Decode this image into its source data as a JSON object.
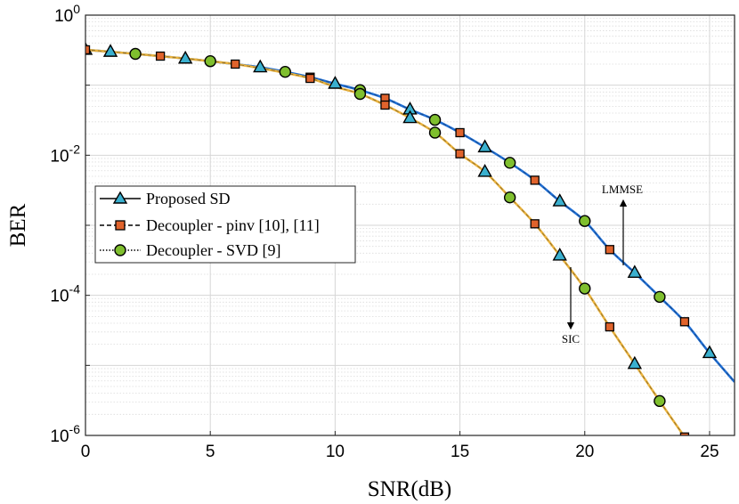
{
  "chart_data": {
    "type": "line",
    "title": "",
    "xlabel": "SNR(dB)",
    "ylabel": "BER",
    "xlim": [
      0,
      26
    ],
    "ylim": [
      1e-06,
      1
    ],
    "yscale": "log",
    "grid": true,
    "x_ticks": [
      0,
      5,
      10,
      15,
      20,
      25
    ],
    "x_tick_labels": [
      "0",
      "5",
      "10",
      "15",
      "20",
      "25"
    ],
    "y_ticks": [
      {
        "value": 1,
        "base": "10",
        "exp": "0"
      },
      {
        "value": 0.01,
        "base": "10",
        "exp": "-2"
      },
      {
        "value": 0.0001,
        "base": "10",
        "exp": "-4"
      },
      {
        "value": 1e-06,
        "base": "10",
        "exp": "-6"
      }
    ],
    "legend_position": "middle-left",
    "legend": [
      {
        "label": "Proposed SD",
        "marker": "triangle",
        "line": "solid"
      },
      {
        "label": "Decoupler - pinv [10], [11]",
        "marker": "square",
        "line": "dashed"
      },
      {
        "label": "Decoupler - SVD [9]",
        "marker": "circle",
        "line": "dotted"
      }
    ],
    "curves": [
      {
        "name": "LMMSE",
        "color": "#1f6fd6",
        "x": [
          0,
          1,
          2,
          3,
          4,
          5,
          6,
          7,
          8,
          9,
          10,
          11,
          12,
          13,
          14,
          15,
          16,
          17,
          18,
          19,
          20,
          21,
          22,
          23,
          24,
          25,
          26
        ],
        "y": [
          0.32,
          0.3,
          0.28,
          0.26,
          0.24,
          0.22,
          0.2,
          0.18,
          0.155,
          0.13,
          0.105,
          0.085,
          0.065,
          0.045,
          0.032,
          0.021,
          0.013,
          0.0078,
          0.0044,
          0.0022,
          0.00115,
          0.00045,
          0.00021,
          9.5e-05,
          4.2e-05,
          1.5e-05,
          5.8e-06
        ]
      },
      {
        "name": "SIC",
        "color": "#eab33e",
        "x": [
          0,
          1,
          2,
          3,
          4,
          5,
          6,
          7,
          8,
          9,
          10,
          11,
          12,
          13,
          14,
          15,
          16,
          17,
          18,
          19,
          20,
          21,
          22,
          23,
          24
        ],
        "y": [
          0.32,
          0.3,
          0.28,
          0.26,
          0.24,
          0.22,
          0.2,
          0.175,
          0.15,
          0.125,
          0.095,
          0.075,
          0.052,
          0.034,
          0.021,
          0.0105,
          0.0058,
          0.0025,
          0.00105,
          0.00037,
          0.000125,
          3.55e-05,
          1.05e-05,
          3.1e-06,
          9.5e-07
        ]
      }
    ],
    "series": [
      {
        "name": "Proposed SD",
        "marker": "triangle",
        "fill": "#3ab0cf",
        "curve": "LMMSE",
        "x": [
          0,
          1,
          4,
          7,
          10,
          13,
          16,
          19,
          22,
          25
        ],
        "y": [
          0.32,
          0.3,
          0.24,
          0.18,
          0.105,
          0.045,
          0.013,
          0.0022,
          0.00021,
          1.5e-05
        ]
      },
      {
        "name": "Proposed SD",
        "marker": "triangle",
        "fill": "#3ab0cf",
        "curve": "SIC",
        "x": [
          13,
          16,
          19,
          22
        ],
        "y": [
          0.034,
          0.0058,
          0.00037,
          1.05e-05
        ]
      },
      {
        "name": "Decoupler - pinv [10], [11]",
        "marker": "square",
        "fill": "#e0632c",
        "curve": "LMMSE",
        "x": [
          0,
          3,
          6,
          9,
          12,
          15,
          18,
          21,
          24
        ],
        "y": [
          0.32,
          0.26,
          0.2,
          0.13,
          0.065,
          0.021,
          0.0044,
          0.00045,
          4.2e-05
        ]
      },
      {
        "name": "Decoupler - pinv [10], [11]",
        "marker": "square",
        "fill": "#e0632c",
        "curve": "SIC",
        "x": [
          9,
          12,
          15,
          18,
          21,
          24
        ],
        "y": [
          0.125,
          0.052,
          0.0105,
          0.00105,
          3.55e-05,
          9.5e-07
        ]
      },
      {
        "name": "Decoupler - SVD [9]",
        "marker": "circle",
        "fill": "#7fbf2e",
        "curve": "LMMSE",
        "x": [
          2,
          5,
          8,
          11,
          14,
          17,
          20,
          23
        ],
        "y": [
          0.28,
          0.22,
          0.155,
          0.085,
          0.032,
          0.0078,
          0.00115,
          9.5e-05
        ]
      },
      {
        "name": "Decoupler - SVD [9]",
        "marker": "circle",
        "fill": "#7fbf2e",
        "curve": "SIC",
        "x": [
          11,
          14,
          17,
          20,
          23
        ],
        "y": [
          0.075,
          0.021,
          0.0025,
          0.000125,
          3.1e-06
        ]
      }
    ],
    "annotations": [
      {
        "text": "LMMSE",
        "arrow": "up"
      },
      {
        "text": "SIC",
        "arrow": "down"
      }
    ]
  }
}
